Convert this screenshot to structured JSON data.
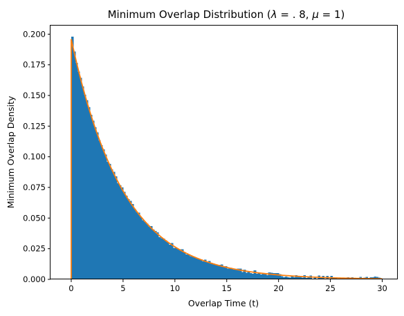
{
  "chart_data": {
    "type": "bar",
    "title": "Minimum Overlap Distribution (λ = .8, μ = 1)",
    "title_prefix": "Minimum Overlap Distribution (",
    "title_lambda": "λ",
    "title_mid": " = . 8, ",
    "title_mu": "μ",
    "title_suffix": " = 1)",
    "xlabel": "Overlap Time (t)",
    "ylabel": "Minimum Overlap Density",
    "xlim": [
      -2,
      31.5
    ],
    "ylim": [
      0,
      0.207
    ],
    "xticks": [
      0,
      5,
      10,
      15,
      20,
      25,
      30
    ],
    "xtick_labels": [
      "0",
      "5",
      "10",
      "15",
      "20",
      "25",
      "30"
    ],
    "yticks": [
      0,
      0.025,
      0.05,
      0.075,
      0.1,
      0.125,
      0.15,
      0.175,
      0.2
    ],
    "ytick_labels": [
      "0.000",
      "0.025",
      "0.050",
      "0.075",
      "0.100",
      "0.125",
      "0.150",
      "0.175",
      "0.200"
    ],
    "grid": false,
    "series": [
      {
        "kind": "histogram",
        "color": "#1f77b4",
        "bin_edges": [
          0,
          30
        ],
        "bin_count": 150,
        "density_model": {
          "amplitude": 0.196,
          "rate": 0.2,
          "noise": 0.0016,
          "first_bin": 0.198
        }
      },
      {
        "kind": "line",
        "color": "#ff7f0e",
        "x_range": [
          0,
          30
        ],
        "density_model": {
          "amplitude": 0.196,
          "rate": 0.2
        },
        "vertical_at_zero": true
      }
    ]
  }
}
